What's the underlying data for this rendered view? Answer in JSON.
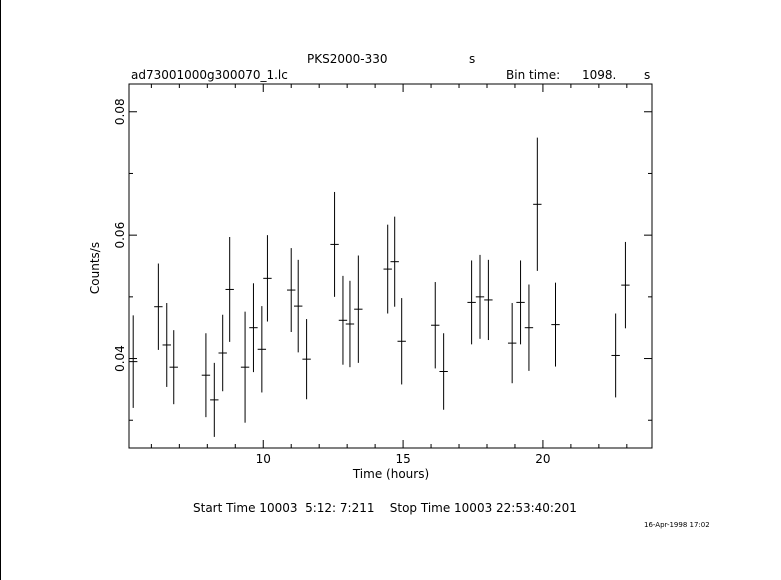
{
  "header": {
    "source": "PKS2000-330",
    "source_unit": "s",
    "filename": "ad73001000g300070_1.lc",
    "bin_time_label": "Bin time:",
    "bin_time_value": "1098.",
    "bin_time_unit": "s"
  },
  "footer": {
    "times": "Start Time 10003  5:12: 7:211    Stop Time 10003 22:53:40:201",
    "date": "16-Apr-1998 17:02"
  },
  "chart_data": {
    "type": "scatter",
    "title": "PKS2000-330",
    "xlabel": "Time (hours)",
    "ylabel": "Counts/s",
    "xlim": [
      5.2,
      23.9
    ],
    "ylim": [
      0.0255,
      0.0845
    ],
    "xticks": [
      10,
      15,
      20
    ],
    "xtick_labels": [
      "10",
      "15",
      "20"
    ],
    "yticks": [
      0.04,
      0.06,
      0.08
    ],
    "ytick_labels": [
      "0.04",
      "0.06",
      "0.08"
    ],
    "grid": false,
    "series": [
      {
        "x": [
          5.35,
          6.25,
          6.55,
          6.8,
          7.95,
          8.25,
          8.55,
          8.8,
          9.35,
          9.65,
          9.95,
          10.15,
          11.0,
          11.25,
          11.55,
          12.55,
          12.85,
          13.1,
          13.4,
          14.45,
          14.7,
          14.95,
          16.15,
          16.45,
          17.45,
          17.75,
          18.05,
          18.9,
          19.2,
          19.5,
          19.8,
          20.45,
          22.6,
          22.95
        ],
        "y": [
          0.0395,
          0.0484,
          0.0422,
          0.0386,
          0.0373,
          0.0333,
          0.0409,
          0.0512,
          0.0386,
          0.045,
          0.0415,
          0.053,
          0.0511,
          0.0485,
          0.0399,
          0.0585,
          0.0462,
          0.0456,
          0.048,
          0.0545,
          0.0557,
          0.0428,
          0.0454,
          0.0379,
          0.0491,
          0.05,
          0.0495,
          0.0425,
          0.0491,
          0.045,
          0.065,
          0.0455,
          0.0405,
          0.0519
        ],
        "yerr": [
          0.0075,
          0.007,
          0.0068,
          0.006,
          0.0068,
          0.006,
          0.0062,
          0.0085,
          0.009,
          0.0072,
          0.007,
          0.007,
          0.0068,
          0.0075,
          0.0065,
          0.0085,
          0.0072,
          0.007,
          0.0087,
          0.0072,
          0.0073,
          0.007,
          0.007,
          0.0062,
          0.0068,
          0.0068,
          0.0065,
          0.0065,
          0.0068,
          0.007,
          0.0108,
          0.0068,
          0.0068,
          0.007
        ],
        "xerr": 0.15
      }
    ]
  }
}
